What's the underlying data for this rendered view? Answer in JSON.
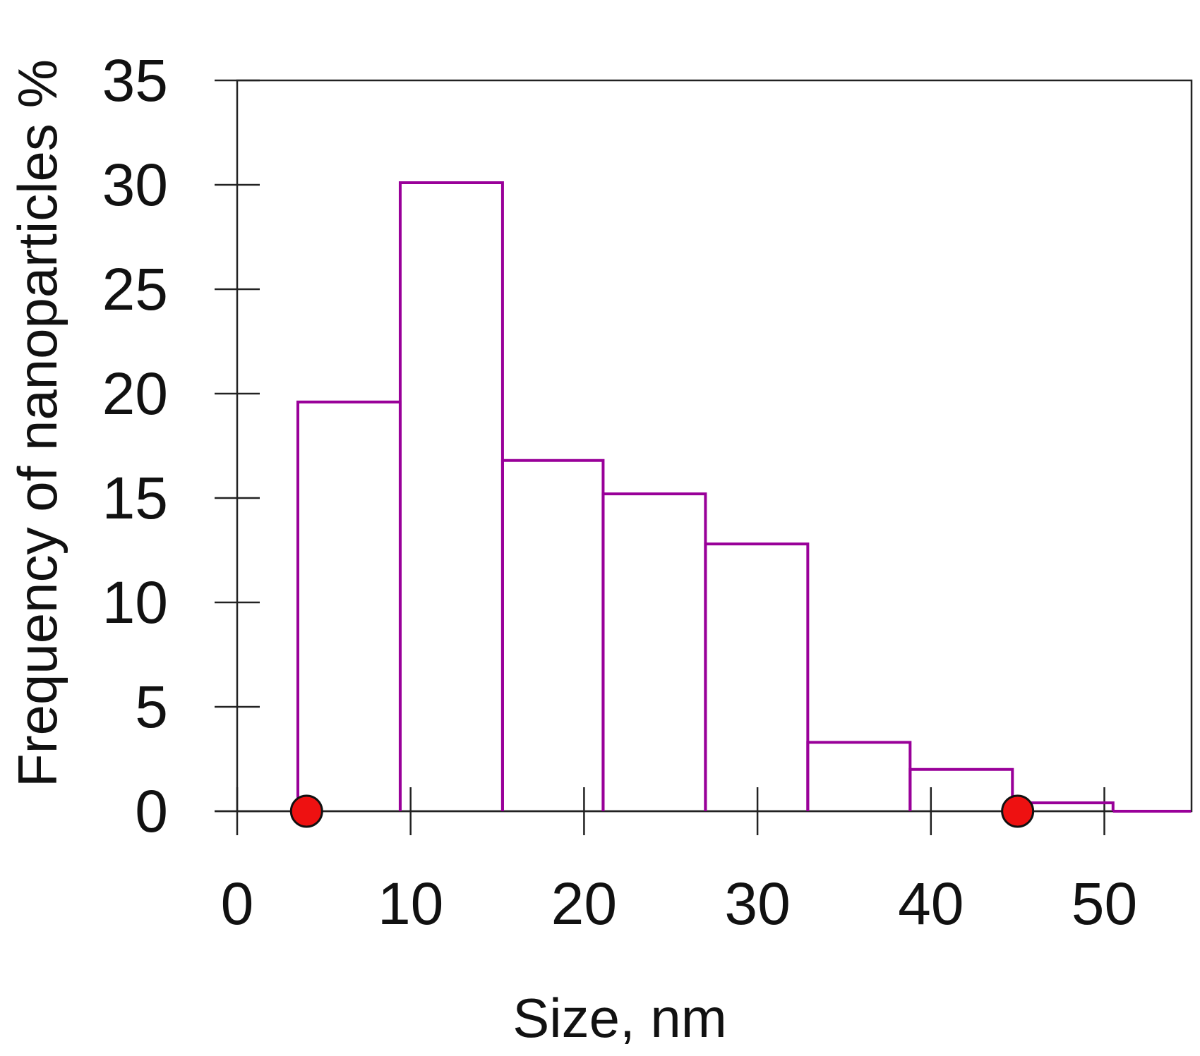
{
  "chart_data": {
    "type": "bar",
    "subtype": "histogram-step",
    "title": "",
    "xlabel": "Size, nm",
    "ylabel": "Frequency of nanoparticles %",
    "xlim": [
      0,
      55
    ],
    "ylim": [
      0,
      35
    ],
    "xticks": [
      0,
      10,
      20,
      30,
      40,
      50
    ],
    "yticks": [
      0,
      5,
      10,
      15,
      20,
      25,
      30,
      35
    ],
    "grid": false,
    "bins": [
      {
        "x0": 3.5,
        "x1": 9.4,
        "value": 19.6
      },
      {
        "x0": 9.4,
        "x1": 15.3,
        "value": 30.1
      },
      {
        "x0": 15.3,
        "x1": 21.1,
        "value": 16.8
      },
      {
        "x0": 21.1,
        "x1": 27.0,
        "value": 15.2
      },
      {
        "x0": 27.0,
        "x1": 32.9,
        "value": 12.8
      },
      {
        "x0": 32.9,
        "x1": 38.8,
        "value": 3.3
      },
      {
        "x0": 38.8,
        "x1": 44.7,
        "value": 2.0
      },
      {
        "x0": 44.7,
        "x1": 50.5,
        "value": 0.4
      },
      {
        "x0": 50.5,
        "x1": 55.0,
        "value": 0.0
      }
    ],
    "markers": [
      {
        "x": 4,
        "y": 0
      },
      {
        "x": 45,
        "y": 0
      }
    ],
    "colors": {
      "bars": "#990099",
      "markers": "#ee1111",
      "axes": "#222222"
    }
  }
}
